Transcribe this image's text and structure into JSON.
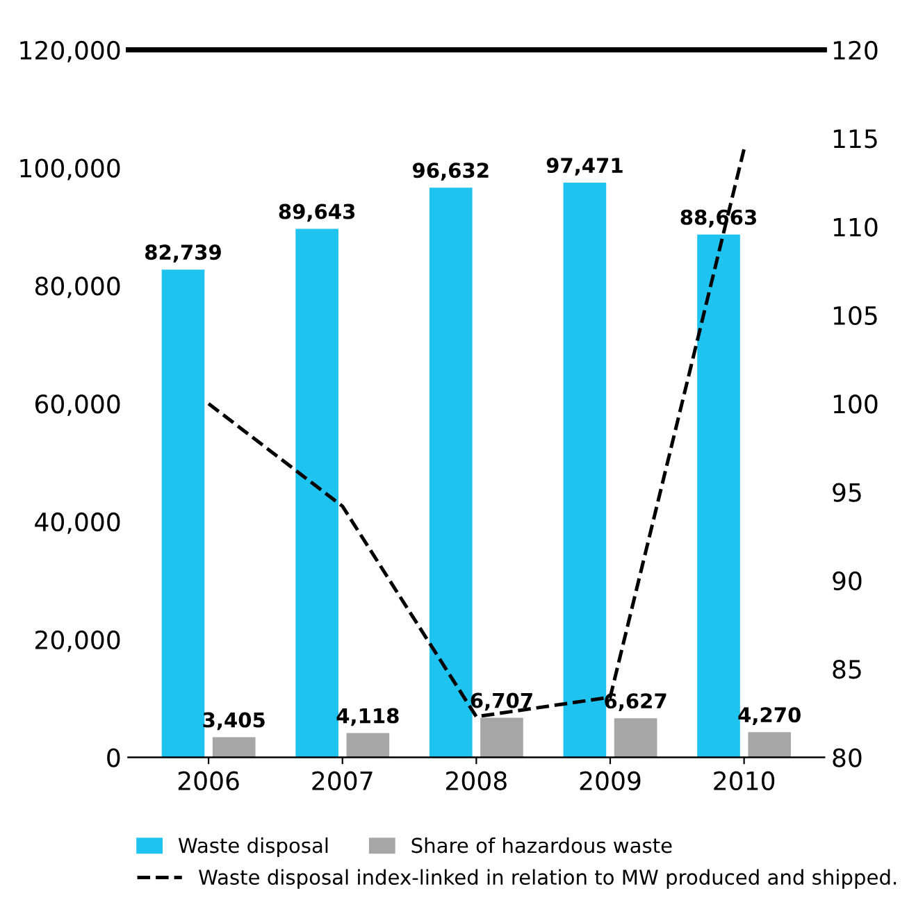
{
  "chart_data": {
    "type": "bar",
    "categories": [
      "2006",
      "2007",
      "2008",
      "2009",
      "2010"
    ],
    "series": [
      {
        "name": "Waste disposal",
        "color": "#1fc3f0",
        "values": [
          82739,
          89643,
          96632,
          97471,
          88663
        ],
        "value_labels": [
          "82,739",
          "89,643",
          "96,632",
          "97,471",
          "88,663"
        ]
      },
      {
        "name": "Share of hazardous waste",
        "color": "#a6a6a6",
        "values": [
          3405,
          4118,
          6707,
          6627,
          4270
        ],
        "value_labels": [
          "3,405",
          "4,118",
          "6,707",
          "6,627",
          "4,270"
        ]
      },
      {
        "name": "Waste disposal index-linked in relation to MW produced and shipped.",
        "type": "line",
        "axis": "y2",
        "color": "#000000",
        "line_style": "dashed",
        "values": [
          100,
          94.2,
          82.3,
          83.4,
          114.4
        ]
      }
    ],
    "ylim": [
      0,
      120000
    ],
    "yticks": [
      {
        "value": 0,
        "label": "0"
      },
      {
        "value": 20000,
        "label": "20,000"
      },
      {
        "value": 40000,
        "label": "40,000"
      },
      {
        "value": 60000,
        "label": "60,000"
      },
      {
        "value": 80000,
        "label": "80,000"
      },
      {
        "value": 100000,
        "label": "100,000"
      },
      {
        "value": 120000,
        "label": "120,000"
      }
    ],
    "y2lim": [
      80,
      120
    ],
    "y2ticks": [
      80,
      85,
      90,
      95,
      100,
      105,
      110,
      115,
      120
    ],
    "grid": false,
    "legend": "bottom"
  }
}
